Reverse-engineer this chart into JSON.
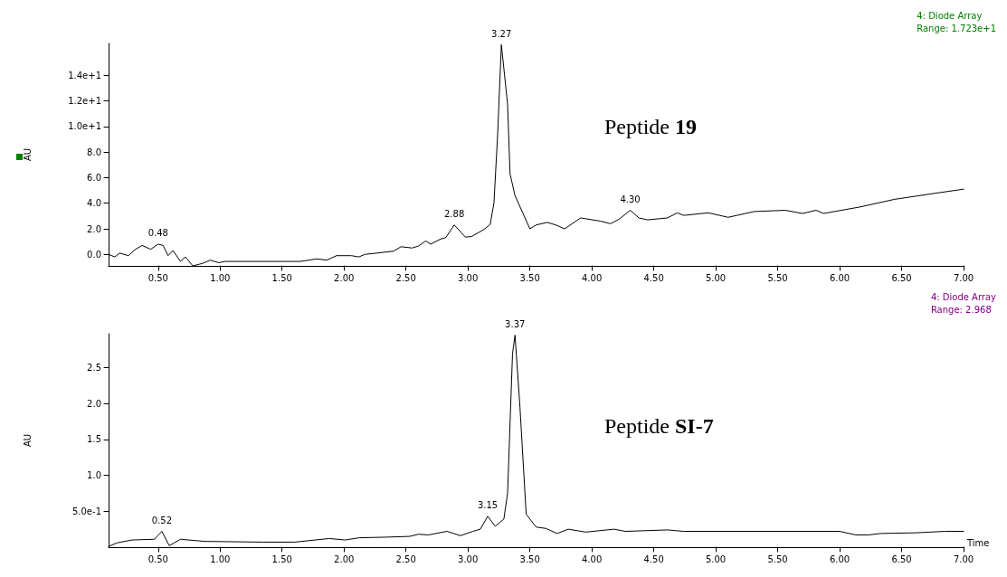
{
  "chart_data": [
    {
      "type": "line",
      "subtitle": "4: Diode Array\nRange: 1.723e+1",
      "ylabel": "AU",
      "xlim": [
        0.1,
        7.0
      ],
      "ylim": [
        -0.9,
        16.5
      ],
      "xticks": [
        {
          "value": 0.5,
          "label": "0.50"
        },
        {
          "value": 1.0,
          "label": "1.00"
        },
        {
          "value": 1.5,
          "label": "1.50"
        },
        {
          "value": 2.0,
          "label": "2.00"
        },
        {
          "value": 2.5,
          "label": "2.50"
        },
        {
          "value": 3.0,
          "label": "3.00"
        },
        {
          "value": 3.5,
          "label": "3.50"
        },
        {
          "value": 4.0,
          "label": "4.00"
        },
        {
          "value": 4.5,
          "label": "4.50"
        },
        {
          "value": 5.0,
          "label": "5.00"
        },
        {
          "value": 5.5,
          "label": "5.50"
        },
        {
          "value": 6.0,
          "label": "6.00"
        },
        {
          "value": 6.5,
          "label": "6.50"
        },
        {
          "value": 7.0,
          "label": "7.00"
        }
      ],
      "yticks": [
        {
          "value": 0,
          "label": "0.0"
        },
        {
          "value": 2,
          "label": "2.0"
        },
        {
          "value": 4,
          "label": "4.0"
        },
        {
          "value": 6,
          "label": "6.0"
        },
        {
          "value": 8,
          "label": "8.0"
        },
        {
          "value": 10,
          "label": "1.0e+1"
        },
        {
          "value": 12,
          "label": "1.2e+1"
        },
        {
          "value": 14,
          "label": "1.4e+1"
        }
      ],
      "grid": false,
      "marker": "none",
      "line_style": "solid",
      "annotations": [
        {
          "text": "0.48",
          "x": 0.5,
          "y": 0.8
        },
        {
          "text": "2.88",
          "x": 2.89,
          "y": 2.3
        },
        {
          "text": "3.27",
          "x": 3.27,
          "y": 16.4
        },
        {
          "text": "4.30",
          "x": 4.31,
          "y": 3.45
        },
        "Peptide 19"
      ],
      "series": [
        {
          "color": "#000000",
          "x": [
            0.1,
            0.15,
            0.19,
            0.26,
            0.31,
            0.37,
            0.44,
            0.5,
            0.54,
            0.58,
            0.62,
            0.68,
            0.72,
            0.78,
            0.86,
            0.92,
            0.99,
            1.04,
            1.65,
            1.78,
            1.86,
            1.94,
            2.06,
            2.12,
            2.17,
            2.4,
            2.46,
            2.55,
            2.6,
            2.66,
            2.7,
            2.78,
            2.82,
            2.89,
            2.98,
            3.03,
            3.13,
            3.18,
            3.21,
            3.24,
            3.27,
            3.32,
            3.34,
            3.38,
            3.5,
            3.55,
            3.64,
            3.71,
            3.78,
            3.91,
            4.07,
            4.15,
            4.22,
            4.31,
            4.38,
            4.45,
            4.61,
            4.69,
            4.74,
            4.94,
            5.1,
            5.31,
            5.56,
            5.7,
            5.81,
            5.87,
            6.16,
            6.44,
            6.75,
            7.0
          ],
          "values": [
            0.0,
            -0.2,
            0.1,
            -0.1,
            0.35,
            0.7,
            0.4,
            0.8,
            0.7,
            -0.1,
            0.3,
            -0.55,
            -0.2,
            -0.9,
            -0.7,
            -0.45,
            -0.65,
            -0.55,
            -0.55,
            -0.35,
            -0.45,
            -0.1,
            -0.1,
            -0.2,
            0.0,
            0.25,
            0.6,
            0.5,
            0.65,
            1.05,
            0.8,
            1.2,
            1.3,
            2.3,
            1.35,
            1.4,
            1.95,
            2.35,
            4.0,
            9.4,
            16.4,
            11.75,
            6.3,
            4.6,
            2.0,
            2.3,
            2.5,
            2.3,
            2.0,
            2.85,
            2.6,
            2.4,
            2.75,
            3.45,
            2.85,
            2.7,
            2.85,
            3.25,
            3.05,
            3.25,
            2.9,
            3.35,
            3.45,
            3.2,
            3.45,
            3.2,
            3.7,
            4.3,
            4.75,
            5.1
          ]
        }
      ]
    },
    {
      "type": "line",
      "subtitle": "4: Diode Array\nRange: 2.968",
      "xlabel": "Time",
      "ylabel": "AU",
      "xlim": [
        0.1,
        7.0
      ],
      "ylim": [
        0.0,
        2.97
      ],
      "xticks": [
        {
          "value": 0.5,
          "label": "0.50"
        },
        {
          "value": 1.0,
          "label": "1.00"
        },
        {
          "value": 1.5,
          "label": "1.50"
        },
        {
          "value": 2.0,
          "label": "2.00"
        },
        {
          "value": 2.5,
          "label": "2.50"
        },
        {
          "value": 3.0,
          "label": "3.00"
        },
        {
          "value": 3.5,
          "label": "3.50"
        },
        {
          "value": 4.0,
          "label": "4.00"
        },
        {
          "value": 4.5,
          "label": "4.50"
        },
        {
          "value": 5.0,
          "label": "5.00"
        },
        {
          "value": 5.5,
          "label": "5.50"
        },
        {
          "value": 6.0,
          "label": "6.00"
        },
        {
          "value": 6.5,
          "label": "6.50"
        },
        {
          "value": 7.0,
          "label": "7.00"
        }
      ],
      "yticks": [
        {
          "value": 0.5,
          "label": "5.0e-1"
        },
        {
          "value": 1.0,
          "label": "1.0"
        },
        {
          "value": 1.5,
          "label": "1.5"
        },
        {
          "value": 2.0,
          "label": "2.0"
        },
        {
          "value": 2.5,
          "label": "2.5"
        }
      ],
      "grid": false,
      "marker": "none",
      "line_style": "solid",
      "annotations": [
        {
          "text": "0.52",
          "x": 0.53,
          "y": 0.22
        },
        {
          "text": "3.15",
          "x": 3.16,
          "y": 0.43
        },
        {
          "text": "3.37",
          "x": 3.38,
          "y": 2.95
        },
        "Peptide SI-7"
      ],
      "series": [
        {
          "color": "#000000",
          "x": [
            0.1,
            0.17,
            0.29,
            0.47,
            0.53,
            0.59,
            0.68,
            0.88,
            1.35,
            1.6,
            1.88,
            2.01,
            2.12,
            2.35,
            2.53,
            2.6,
            2.68,
            2.83,
            2.94,
            3.04,
            3.1,
            3.16,
            3.22,
            3.29,
            3.32,
            3.36,
            3.38,
            3.42,
            3.47,
            3.55,
            3.63,
            3.72,
            3.81,
            3.95,
            4.18,
            4.27,
            4.61,
            4.74,
            6.0,
            6.13,
            6.23,
            6.33,
            6.62,
            6.85,
            7.0
          ],
          "values": [
            0.01,
            0.06,
            0.1,
            0.11,
            0.22,
            0.02,
            0.11,
            0.08,
            0.07,
            0.07,
            0.12,
            0.1,
            0.13,
            0.14,
            0.15,
            0.18,
            0.17,
            0.22,
            0.16,
            0.22,
            0.25,
            0.43,
            0.29,
            0.39,
            0.75,
            2.69,
            2.95,
            1.95,
            0.46,
            0.28,
            0.26,
            0.19,
            0.25,
            0.21,
            0.25,
            0.22,
            0.24,
            0.22,
            0.22,
            0.17,
            0.17,
            0.19,
            0.2,
            0.22,
            0.22
          ]
        }
      ]
    }
  ]
}
